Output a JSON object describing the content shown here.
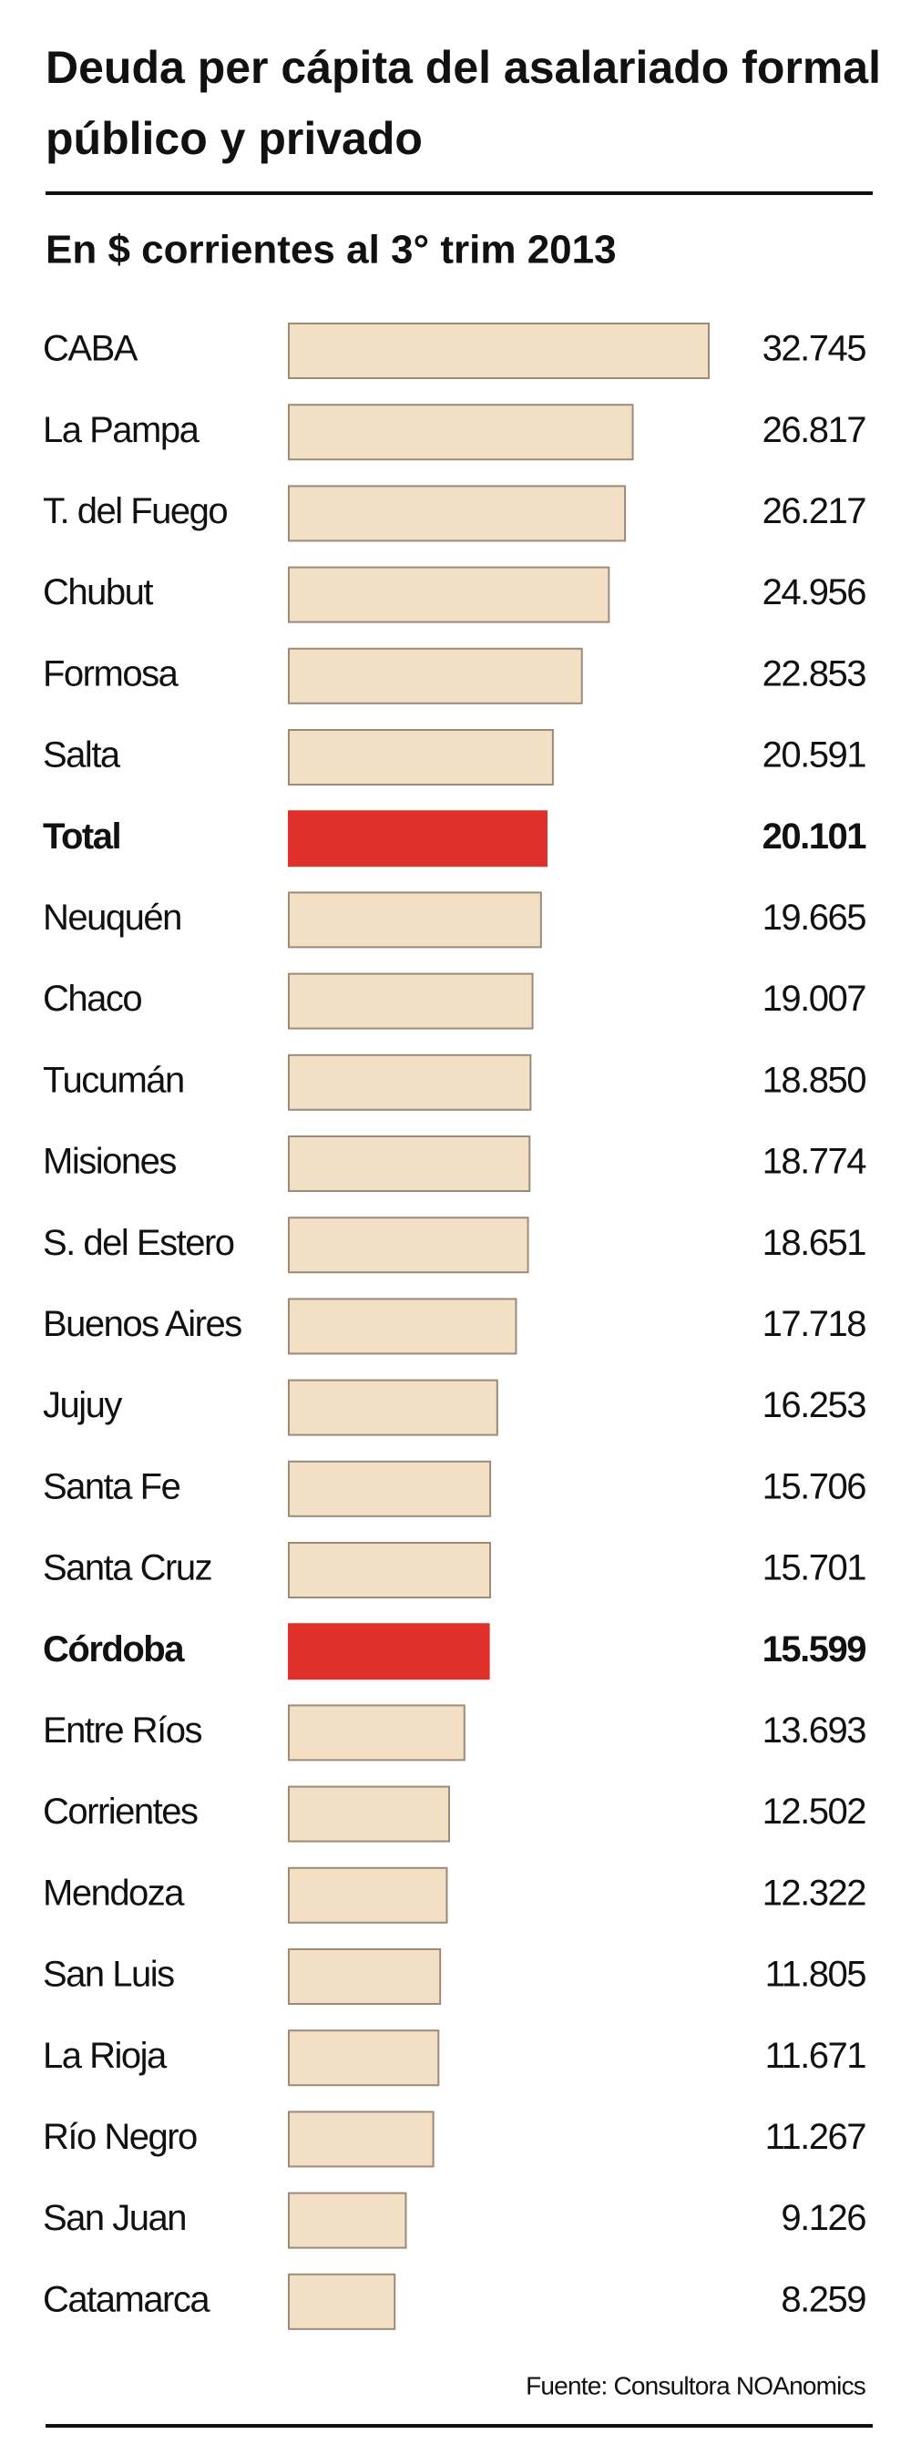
{
  "chart_data": {
    "type": "bar",
    "title": "Deuda per cápita del asalariado formal público y privado",
    "subtitle": "En $ corrientes al 3° trim 2013",
    "source": "Fuente: Consultora NOAnomics",
    "categories": [
      "CABA",
      "La Pampa",
      "T. del Fuego",
      "Chubut",
      "Formosa",
      "Salta",
      "Total",
      "Neuquén",
      "Chaco",
      "Tucumán",
      "Misiones",
      "S. del Estero",
      "Buenos Aires",
      "Jujuy",
      "Santa Fe",
      "Santa Cruz",
      "Córdoba",
      "Entre Ríos",
      "Corrientes",
      "Mendoza",
      "San Luis",
      "La Rioja",
      "Río Negro",
      "San Juan",
      "Catamarca"
    ],
    "values": [
      32745,
      26817,
      26217,
      24956,
      22853,
      20591,
      20101,
      19665,
      19007,
      18850,
      18774,
      18651,
      17718,
      16253,
      15706,
      15701,
      15599,
      13693,
      12502,
      12322,
      11805,
      11671,
      11267,
      9126,
      8259
    ],
    "value_labels": [
      "32.745",
      "26.817",
      "26.217",
      "24.956",
      "22.853",
      "20.591",
      "20.101",
      "19.665",
      "19.007",
      "18.850",
      "18.774",
      "18.651",
      "17.718",
      "16.253",
      "15.706",
      "15.701",
      "15.599",
      "13.693",
      "12.502",
      "12.322",
      "11.805",
      "11.671",
      "11.267",
      "9.126",
      "8.259"
    ],
    "color": "#f3dfc4",
    "colors": [
      "#f3dfc4",
      "#f3dfc4",
      "#f3dfc4",
      "#f3dfc4",
      "#f3dfc4",
      "#f3dfc4",
      "#e0302a",
      "#f3dfc4",
      "#f3dfc4",
      "#f3dfc4",
      "#f3dfc4",
      "#f3dfc4",
      "#f3dfc4",
      "#f3dfc4",
      "#f3dfc4",
      "#f3dfc4",
      "#e0302a",
      "#f3dfc4",
      "#f3dfc4",
      "#f3dfc4",
      "#f3dfc4",
      "#f3dfc4",
      "#f3dfc4",
      "#f3dfc4",
      "#f3dfc4"
    ]
  }
}
